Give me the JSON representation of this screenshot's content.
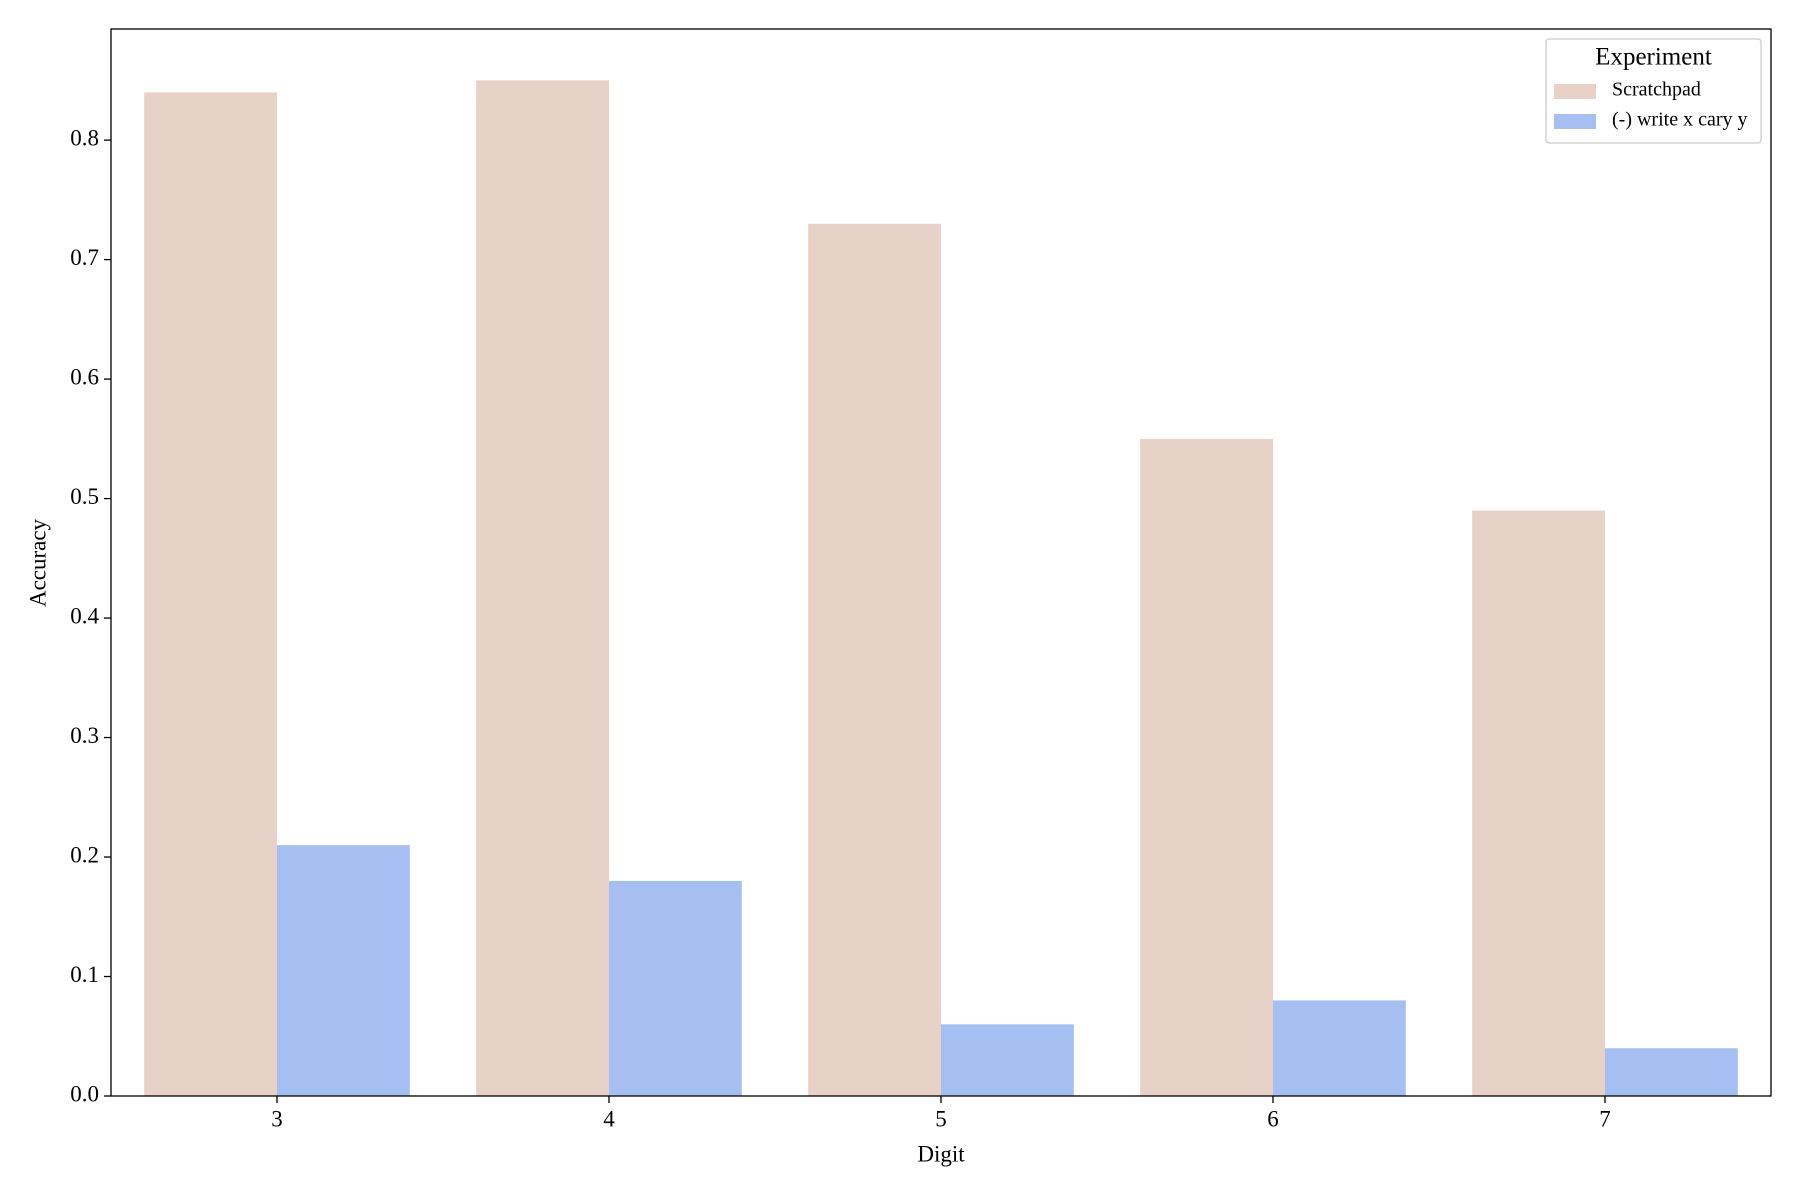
{
  "chart_data": {
    "type": "bar",
    "x_label": "Digit",
    "y_label": "Accuracy",
    "categories": [
      "3",
      "4",
      "5",
      "6",
      "7"
    ],
    "series": [
      {
        "name": "Scratchpad",
        "color": "#e8d1c6",
        "values": [
          0.84,
          0.85,
          0.73,
          0.55,
          0.49
        ]
      },
      {
        "name": "(-) write x cary y",
        "color": "#a6bff2",
        "values": [
          0.21,
          0.18,
          0.06,
          0.08,
          0.04
        ]
      }
    ],
    "ylim": [
      0,
      0.893
    ],
    "yticks": [
      {
        "value": 0,
        "label": "0.0"
      },
      0.1,
      0.2,
      0.3,
      0.4,
      0.5,
      0.6,
      0.7,
      0.8
    ],
    "grid": false,
    "legend_title": "Experiment",
    "legend_position": "upper right"
  }
}
